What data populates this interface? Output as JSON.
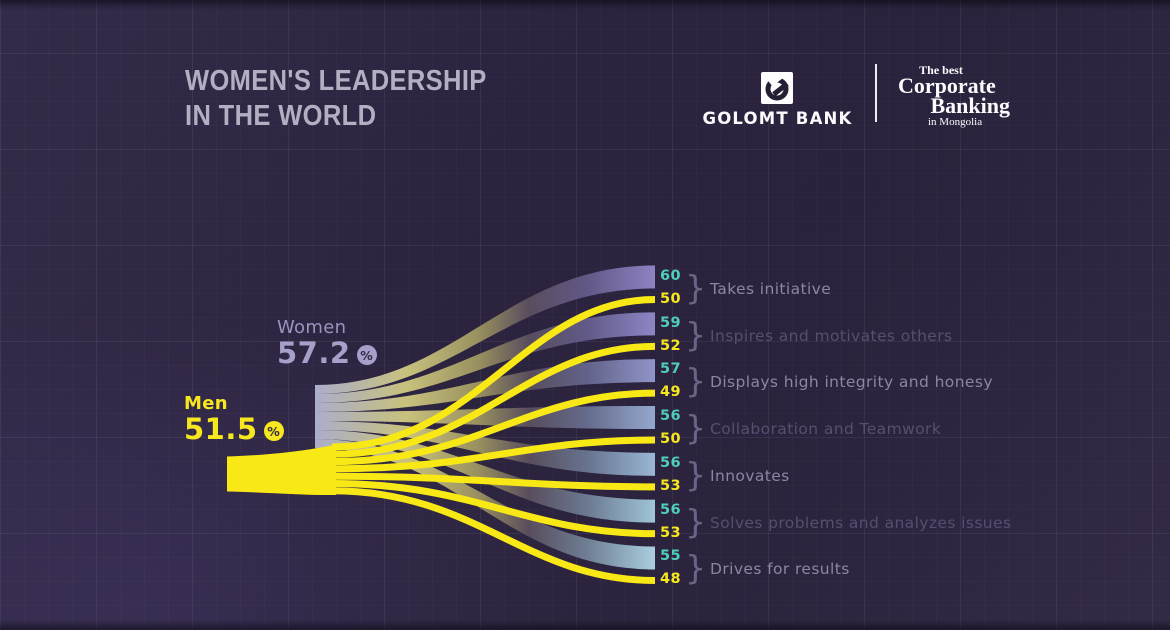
{
  "title": {
    "line1": "WOMEN'S LEADERSHIP",
    "line2": "IN THE WORLD"
  },
  "brand": {
    "logo_letter": "G",
    "bank_name": "GOLOMT BANK",
    "award": {
      "line1": "The best",
      "line2": "Corporate",
      "line3": "Banking",
      "line4": "in Mongolia"
    }
  },
  "decorations": {
    "brace": "}",
    "percent_sign": "%"
  },
  "chart_data": {
    "type": "sankey",
    "title": "Women's leadership in the world",
    "legend_position": "left",
    "sources": [
      {
        "name": "Women",
        "value": "57.2",
        "unit": "%",
        "color": "#a6a0ca"
      },
      {
        "name": "Men",
        "value": "51.5",
        "unit": "%",
        "color": "#f8e816"
      }
    ],
    "categories": [
      {
        "label": "Takes initiative",
        "women": 60,
        "men": 50
      },
      {
        "label": "Inspires and motivates others",
        "women": 59,
        "men": 52
      },
      {
        "label": "Displays high integrity and honesy",
        "women": 57,
        "men": 49
      },
      {
        "label": "Collaboration and Teamwork",
        "women": 56,
        "men": 50
      },
      {
        "label": "Innovates",
        "women": 56,
        "men": 53
      },
      {
        "label": "Solves problems and analyzes issues",
        "women": 56,
        "men": 53
      },
      {
        "label": "Drives for results",
        "women": 55,
        "men": 48
      }
    ],
    "colors": {
      "women_value_text": "#4fcdbd",
      "men_value_text": "#f6e71f",
      "band_source": "#abadcb",
      "band_crossing": "#c8c17d",
      "band_ends": [
        "#8e82c2",
        "#8c86c5",
        "#8f95c8",
        "#94a8cd",
        "#99b7d4",
        "#a0c4d8",
        "#a9cede"
      ],
      "men_flow": "#f8e816",
      "background": "#2d2540"
    }
  }
}
